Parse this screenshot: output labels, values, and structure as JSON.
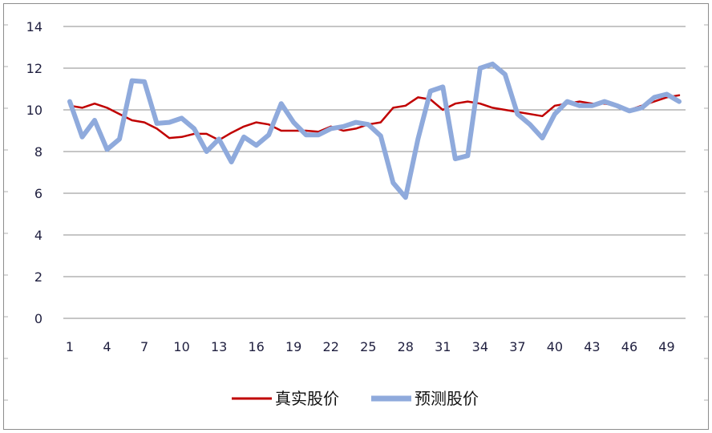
{
  "chart_data": {
    "type": "line",
    "title": "",
    "xlabel": "",
    "ylabel": "",
    "x": [
      1,
      2,
      3,
      4,
      5,
      6,
      7,
      8,
      9,
      10,
      11,
      12,
      13,
      14,
      15,
      16,
      17,
      18,
      19,
      20,
      21,
      22,
      23,
      24,
      25,
      26,
      27,
      28,
      29,
      30,
      31,
      32,
      33,
      34,
      35,
      36,
      37,
      38,
      39,
      40,
      41,
      42,
      43,
      44,
      45,
      46,
      47,
      48,
      49,
      50
    ],
    "x_tick_labels": [
      "1",
      "4",
      "7",
      "10",
      "13",
      "16",
      "19",
      "22",
      "25",
      "28",
      "31",
      "34",
      "37",
      "40",
      "43",
      "46",
      "49"
    ],
    "ylim": [
      0,
      14
    ],
    "y_ticks": [
      0,
      2,
      4,
      6,
      8,
      10,
      12,
      14
    ],
    "grid": true,
    "legend_position": "bottom",
    "series": [
      {
        "name": "真实股价",
        "color": "#c00000",
        "values": [
          10.2,
          10.1,
          10.3,
          10.1,
          9.8,
          9.5,
          9.4,
          9.1,
          8.65,
          8.7,
          8.85,
          8.85,
          8.55,
          8.9,
          9.2,
          9.4,
          9.3,
          9.0,
          9.0,
          9.0,
          8.95,
          9.2,
          9.0,
          9.1,
          9.3,
          9.4,
          10.1,
          10.2,
          10.6,
          10.5,
          10.0,
          10.3,
          10.4,
          10.3,
          10.1,
          10.0,
          9.9,
          9.8,
          9.7,
          10.2,
          10.3,
          10.4,
          10.3,
          10.3,
          10.2,
          10.0,
          10.2,
          10.4,
          10.6,
          10.7
        ]
      },
      {
        "name": "预测股价",
        "color": "#8faadc",
        "values": [
          10.4,
          8.7,
          9.5,
          8.1,
          8.6,
          11.4,
          11.35,
          9.35,
          9.4,
          9.6,
          9.1,
          8.0,
          8.6,
          7.5,
          8.7,
          8.3,
          8.8,
          10.3,
          9.4,
          8.8,
          8.8,
          9.1,
          9.2,
          9.4,
          9.3,
          8.75,
          6.5,
          5.8,
          8.6,
          10.9,
          11.1,
          7.65,
          7.8,
          12.0,
          12.2,
          11.7,
          9.8,
          9.3,
          8.65,
          9.8,
          10.4,
          10.2,
          10.2,
          10.4,
          10.2,
          9.95,
          10.1,
          10.6,
          10.75,
          10.4
        ]
      }
    ]
  }
}
